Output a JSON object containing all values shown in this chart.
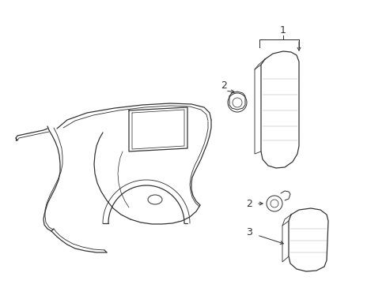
{
  "bg_color": "#ffffff",
  "line_color": "#333333",
  "lw": 0.9,
  "figsize": [
    4.89,
    3.6
  ],
  "dpi": 100,
  "xlim": [
    0,
    489
  ],
  "ylim": [
    0,
    360
  ]
}
